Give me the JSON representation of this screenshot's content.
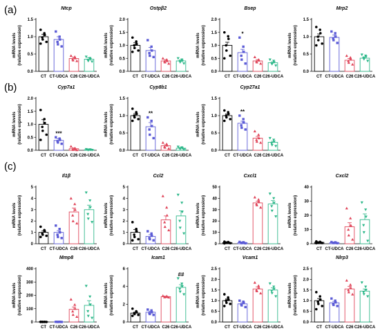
{
  "figure": {
    "panel_labels": [
      "(a)",
      "(b)",
      "(c)"
    ]
  },
  "colors": {
    "CT": "#000000",
    "CT-UDCA": "#5b5bd6",
    "C26": "#e0465a",
    "C26-UDCA": "#2eb88a"
  },
  "chart_data": [
    {
      "type": "bar",
      "panel": "a",
      "title": "Ntcp",
      "ylabel": "mRNA levels\n(relative expression)",
      "categories": [
        "CT",
        "CT-UDCA",
        "C26",
        "C26-UDCA"
      ],
      "values": [
        1.0,
        0.92,
        0.37,
        0.35
      ],
      "errors": [
        0.07,
        0.08,
        0.04,
        0.04
      ],
      "ylim": [
        0,
        1.5
      ],
      "yticks": [
        "0.0",
        "0.5",
        "1.0",
        "1.5"
      ],
      "points": [
        [
          1.2,
          1.1,
          1.05,
          0.98,
          0.92,
          0.85,
          0.8
        ],
        [
          1.15,
          1.0,
          0.92,
          0.85,
          0.78,
          0.72
        ],
        [
          0.45,
          0.42,
          0.38,
          0.35,
          0.32,
          0.3
        ],
        [
          0.42,
          0.38,
          0.35,
          0.32,
          0.3,
          0.28
        ]
      ],
      "annotations": [
        "",
        "",
        "",
        ""
      ]
    },
    {
      "type": "bar",
      "panel": "a",
      "title": "Ostpβ2",
      "ylabel": "mRNA levels\n(relative expression)",
      "categories": [
        "CT",
        "CT-UDCA",
        "C26",
        "C26-UDCA"
      ],
      "values": [
        1.0,
        0.8,
        0.4,
        0.4
      ],
      "errors": [
        0.1,
        0.12,
        0.05,
        0.04
      ],
      "ylim": [
        0,
        2.0
      ],
      "yticks": [
        "0.0",
        "0.5",
        "1.0",
        "1.5",
        "2.0"
      ],
      "points": [
        [
          1.3,
          1.15,
          1.05,
          1.0,
          0.9,
          0.8,
          0.75
        ],
        [
          1.2,
          0.95,
          0.8,
          0.7,
          0.6,
          0.55
        ],
        [
          0.5,
          0.45,
          0.4,
          0.38,
          0.35,
          0.3
        ],
        [
          0.5,
          0.45,
          0.4,
          0.38,
          0.35,
          0.3
        ]
      ],
      "annotations": [
        "",
        "",
        "",
        ""
      ]
    },
    {
      "type": "bar",
      "panel": "a",
      "title": "Bsep",
      "ylabel": "mRNA levels\n(relative expression)",
      "categories": [
        "CT",
        "CT-UDCA",
        "C26",
        "C26-UDCA"
      ],
      "values": [
        1.0,
        0.72,
        0.4,
        0.33
      ],
      "errors": [
        0.12,
        0.13,
        0.05,
        0.04
      ],
      "ylim": [
        0,
        2.0
      ],
      "yticks": [
        "0.0",
        "0.5",
        "1.0",
        "1.5",
        "2.0"
      ],
      "points": [
        [
          1.5,
          1.35,
          1.25,
          1.0,
          0.8,
          0.6,
          0.5
        ],
        [
          1.3,
          0.95,
          0.75,
          0.6,
          0.45,
          0.3
        ],
        [
          0.55,
          0.45,
          0.42,
          0.38,
          0.35,
          0.3
        ],
        [
          0.45,
          0.4,
          0.35,
          0.3,
          0.28,
          0.22
        ]
      ],
      "annotations": [
        "",
        "*",
        "",
        ""
      ]
    },
    {
      "type": "bar",
      "panel": "a",
      "title": "Mrp2",
      "ylabel": "mRNA levels\n(relative expression)",
      "categories": [
        "CT",
        "CT-UDCA",
        "C26",
        "C26-UDCA"
      ],
      "values": [
        1.0,
        0.98,
        0.32,
        0.38
      ],
      "errors": [
        0.08,
        0.07,
        0.05,
        0.04
      ],
      "ylim": [
        0,
        1.5
      ],
      "yticks": [
        "0.0",
        "0.5",
        "1.0",
        "1.5"
      ],
      "points": [
        [
          1.28,
          1.2,
          1.1,
          1.0,
          0.9,
          0.8,
          0.75
        ],
        [
          1.15,
          1.1,
          1.0,
          0.95,
          0.9,
          0.82
        ],
        [
          0.45,
          0.4,
          0.35,
          0.3,
          0.25,
          0.2
        ],
        [
          0.48,
          0.45,
          0.42,
          0.38,
          0.35,
          0.3
        ]
      ],
      "annotations": [
        "",
        "",
        "",
        ""
      ]
    },
    {
      "type": "bar",
      "panel": "b",
      "title": "Cyp7a1",
      "ylabel": "mRNA levels\n(relative expression)",
      "categories": [
        "CT",
        "CT-UDCA",
        "C26",
        "C26-UDCA"
      ],
      "values": [
        1.0,
        0.38,
        0.06,
        0.02
      ],
      "errors": [
        0.18,
        0.06,
        0.03,
        0.01
      ],
      "ylim": [
        0,
        2.0
      ],
      "yticks": [
        "0.0",
        "0.5",
        "1.0",
        "1.5",
        "2.0"
      ],
      "points": [
        [
          1.55,
          1.2,
          1.05,
          0.9,
          0.75,
          0.6,
          0.4
        ],
        [
          0.5,
          0.45,
          0.4,
          0.35,
          0.3,
          0.25
        ],
        [
          0.15,
          0.08,
          0.05,
          0.03,
          0.02,
          0.01
        ],
        [
          0.04,
          0.03,
          0.02,
          0.02,
          0.01,
          0.01
        ]
      ],
      "annotations": [
        "",
        "***",
        "",
        ""
      ]
    },
    {
      "type": "bar",
      "panel": "b",
      "title": "Cyp8b1",
      "ylabel": "mRNA levels\n(relative expression)",
      "categories": [
        "CT",
        "CT-UDCA",
        "C26",
        "C26-UDCA"
      ],
      "values": [
        1.0,
        0.68,
        0.13,
        0.06
      ],
      "errors": [
        0.06,
        0.12,
        0.03,
        0.02
      ],
      "ylim": [
        0,
        1.5
      ],
      "yticks": [
        "0.0",
        "0.5",
        "1.0",
        "1.5"
      ],
      "points": [
        [
          1.2,
          1.1,
          1.05,
          1.0,
          0.95,
          0.9,
          0.85
        ],
        [
          0.95,
          0.85,
          0.7,
          0.6,
          0.45,
          0.35
        ],
        [
          0.22,
          0.18,
          0.14,
          0.1,
          0.08,
          0.05
        ],
        [
          0.1,
          0.08,
          0.06,
          0.05,
          0.04,
          0.02
        ]
      ],
      "annotations": [
        "",
        "**",
        "",
        ""
      ]
    },
    {
      "type": "bar",
      "panel": "b",
      "title": "Cyp27a1",
      "ylabel": "mRNA levels\n(relative expression)",
      "categories": [
        "CT",
        "CT-UDCA",
        "C26",
        "C26-UDCA"
      ],
      "values": [
        1.0,
        0.78,
        0.35,
        0.23
      ],
      "errors": [
        0.05,
        0.06,
        0.05,
        0.03
      ],
      "ylim": [
        0,
        1.5
      ],
      "yticks": [
        "0.0",
        "0.5",
        "1.0",
        "1.5"
      ],
      "points": [
        [
          1.15,
          1.1,
          1.05,
          1.0,
          0.95,
          0.9,
          0.85
        ],
        [
          1.0,
          0.9,
          0.8,
          0.72,
          0.65,
          0.6
        ],
        [
          0.55,
          0.45,
          0.35,
          0.3,
          0.25,
          0.22
        ],
        [
          0.35,
          0.3,
          0.25,
          0.2,
          0.15,
          0.12
        ]
      ],
      "annotations": [
        "",
        "**",
        "",
        ""
      ]
    },
    {
      "type": "bar",
      "panel": "c",
      "title": "Il1β",
      "ylabel": "mRNA levels\n(relative expression)",
      "categories": [
        "CT",
        "CT-UDCA",
        "C26",
        "C26-UDCA"
      ],
      "values": [
        1.0,
        1.0,
        2.8,
        3.0
      ],
      "errors": [
        0.12,
        0.15,
        0.35,
        0.4
      ],
      "ylim": [
        0,
        5
      ],
      "yticks": [
        "0",
        "1",
        "2",
        "3",
        "4",
        "5"
      ],
      "points": [
        [
          1.5,
          1.2,
          1.1,
          0.9,
          0.8,
          0.7,
          0.6
        ],
        [
          1.6,
          1.3,
          1.0,
          0.8,
          0.6,
          0.5
        ],
        [
          4.0,
          3.5,
          3.0,
          2.5,
          2.0,
          1.8
        ],
        [
          4.5,
          3.8,
          3.2,
          2.6,
          2.2,
          1.9
        ]
      ],
      "annotations": [
        "",
        "",
        "",
        ""
      ]
    },
    {
      "type": "bar",
      "panel": "c",
      "title": "Ccl2",
      "ylabel": "mRNA levels\n(relative expression)",
      "categories": [
        "CT",
        "CT-UDCA",
        "C26",
        "C26-UDCA"
      ],
      "values": [
        1.0,
        0.65,
        2.1,
        2.45
      ],
      "errors": [
        0.25,
        0.15,
        0.35,
        0.45
      ],
      "ylim": [
        0,
        5
      ],
      "yticks": [
        "0",
        "1",
        "2",
        "3",
        "4",
        "5"
      ],
      "points": [
        [
          1.9,
          1.3,
          1.1,
          0.8,
          0.6,
          0.4,
          0.3
        ],
        [
          1.1,
          0.9,
          0.7,
          0.5,
          0.4,
          0.3
        ],
        [
          4.2,
          3.2,
          2.5,
          1.9,
          1.5,
          1.2
        ],
        [
          4.3,
          3.6,
          2.8,
          2.0,
          1.4,
          0.9
        ]
      ],
      "annotations": [
        "",
        "",
        "",
        ""
      ]
    },
    {
      "type": "bar",
      "panel": "c",
      "title": "Cxcl1",
      "ylabel": "mRNA levels\n(relative expression)",
      "categories": [
        "CT",
        "CT-UDCA",
        "C26",
        "C26-UDCA"
      ],
      "values": [
        1.0,
        1.0,
        36,
        35
      ],
      "errors": [
        0.3,
        0.3,
        1.5,
        3.0
      ],
      "ylim": [
        0,
        50
      ],
      "yticks": [
        "0",
        "10",
        "20",
        "30",
        "40",
        "50"
      ],
      "points": [
        [
          1.8,
          1.5,
          1.2,
          1.0,
          0.8,
          0.5,
          0.3
        ],
        [
          1.6,
          1.3,
          1.0,
          0.8,
          0.6,
          0.4
        ],
        [
          41,
          39,
          37,
          35,
          34,
          32
        ],
        [
          44,
          40,
          36,
          33,
          29,
          24
        ]
      ],
      "annotations": [
        "",
        "",
        "",
        ""
      ]
    },
    {
      "type": "bar",
      "panel": "c",
      "title": "Cxcl2",
      "ylabel": "mRNA levels\n(relative expression)",
      "categories": [
        "CT",
        "CT-UDCA",
        "C26",
        "C26-UDCA"
      ],
      "values": [
        1.0,
        0.8,
        12,
        17
      ],
      "errors": [
        0.2,
        0.2,
        2.8,
        4.0
      ],
      "ylim": [
        0,
        40
      ],
      "yticks": [
        "0",
        "10",
        "20",
        "30",
        "40"
      ],
      "points": [
        [
          1.6,
          1.3,
          1.1,
          0.9,
          0.7,
          0.5,
          0.4
        ],
        [
          1.2,
          1.0,
          0.8,
          0.6,
          0.5,
          0.4
        ],
        [
          25,
          18,
          13,
          10,
          6,
          3
        ],
        [
          29,
          24,
          19,
          13,
          8,
          2
        ]
      ],
      "annotations": [
        "",
        "",
        "",
        ""
      ]
    },
    {
      "type": "bar",
      "panel": "c",
      "title": "Mmp8",
      "ylabel": "mRNA levels\n(relative expression)",
      "categories": [
        "CT",
        "CT-UDCA",
        "C26",
        "C26-UDCA"
      ],
      "values": [
        1.0,
        1.0,
        95,
        125
      ],
      "errors": [
        0.3,
        0.3,
        18,
        35
      ],
      "ylim": [
        0,
        400
      ],
      "yticks": [
        "0",
        "100",
        "200",
        "300",
        "400"
      ],
      "points": [
        [
          1.5,
          1.2,
          1.0,
          0.8,
          0.6,
          0.5,
          0.4
        ],
        [
          1.4,
          1.1,
          0.9,
          0.7,
          0.5,
          0.4
        ],
        [
          170,
          130,
          100,
          80,
          55,
          40
        ],
        [
          270,
          190,
          130,
          80,
          45,
          30
        ]
      ],
      "annotations": [
        "",
        "",
        "",
        ""
      ]
    },
    {
      "type": "bar",
      "panel": "c",
      "title": "Icam1",
      "ylabel": "mRNA levels\n(relative expression)",
      "categories": [
        "CT",
        "CT-UDCA",
        "C26",
        "C26-UDCA"
      ],
      "values": [
        1.0,
        1.1,
        2.85,
        3.9
      ],
      "errors": [
        0.1,
        0.1,
        0.05,
        0.3
      ],
      "ylim": [
        0,
        6
      ],
      "yticks": [
        "0",
        "2",
        "4",
        "6"
      ],
      "points": [
        [
          1.5,
          1.2,
          1.1,
          1.0,
          0.9,
          0.8,
          0.7
        ],
        [
          1.4,
          1.3,
          1.1,
          1.0,
          0.9,
          0.8
        ],
        [
          2.95,
          2.9,
          2.85,
          2.82,
          2.8,
          2.78
        ],
        [
          4.9,
          4.3,
          4.0,
          3.7,
          3.4,
          3.1
        ]
      ],
      "annotations": [
        "",
        "",
        "",
        "##"
      ]
    },
    {
      "type": "bar",
      "panel": "c",
      "title": "Vcam1",
      "ylabel": "mRNA levels\n(relative expression)",
      "categories": [
        "CT",
        "CT-UDCA",
        "C26",
        "C26-UDCA"
      ],
      "values": [
        1.0,
        0.85,
        1.55,
        1.5
      ],
      "errors": [
        0.08,
        0.06,
        0.1,
        0.1
      ],
      "ylim": [
        0,
        2.5
      ],
      "yticks": [
        "0.0",
        "0.5",
        "1.0",
        "1.5",
        "2.0",
        "2.5"
      ],
      "points": [
        [
          1.3,
          1.15,
          1.05,
          1.0,
          0.9,
          0.85,
          0.75
        ],
        [
          1.0,
          0.95,
          0.9,
          0.82,
          0.78,
          0.7
        ],
        [
          1.85,
          1.7,
          1.6,
          1.5,
          1.45,
          1.35
        ],
        [
          1.8,
          1.65,
          1.55,
          1.45,
          1.35,
          1.2
        ]
      ],
      "annotations": [
        "",
        "",
        "",
        ""
      ]
    },
    {
      "type": "bar",
      "panel": "c",
      "title": "Nlrp3",
      "ylabel": "mRNA levels\n(relative expression)",
      "categories": [
        "CT",
        "CT-UDCA",
        "C26",
        "C26-UDCA"
      ],
      "values": [
        1.0,
        0.9,
        1.55,
        1.45
      ],
      "errors": [
        0.1,
        0.07,
        0.12,
        0.1
      ],
      "ylim": [
        0,
        2.5
      ],
      "yticks": [
        "0.0",
        "0.5",
        "1.0",
        "1.5",
        "2.0",
        "2.5"
      ],
      "points": [
        [
          1.4,
          1.2,
          1.05,
          0.95,
          0.85,
          0.75,
          0.6
        ],
        [
          1.1,
          1.0,
          0.92,
          0.85,
          0.8,
          0.75
        ],
        [
          1.95,
          1.75,
          1.6,
          1.5,
          1.4,
          1.3
        ],
        [
          1.85,
          1.65,
          1.5,
          1.4,
          1.3,
          1.2
        ]
      ],
      "annotations": [
        "",
        "",
        "",
        ""
      ]
    }
  ]
}
